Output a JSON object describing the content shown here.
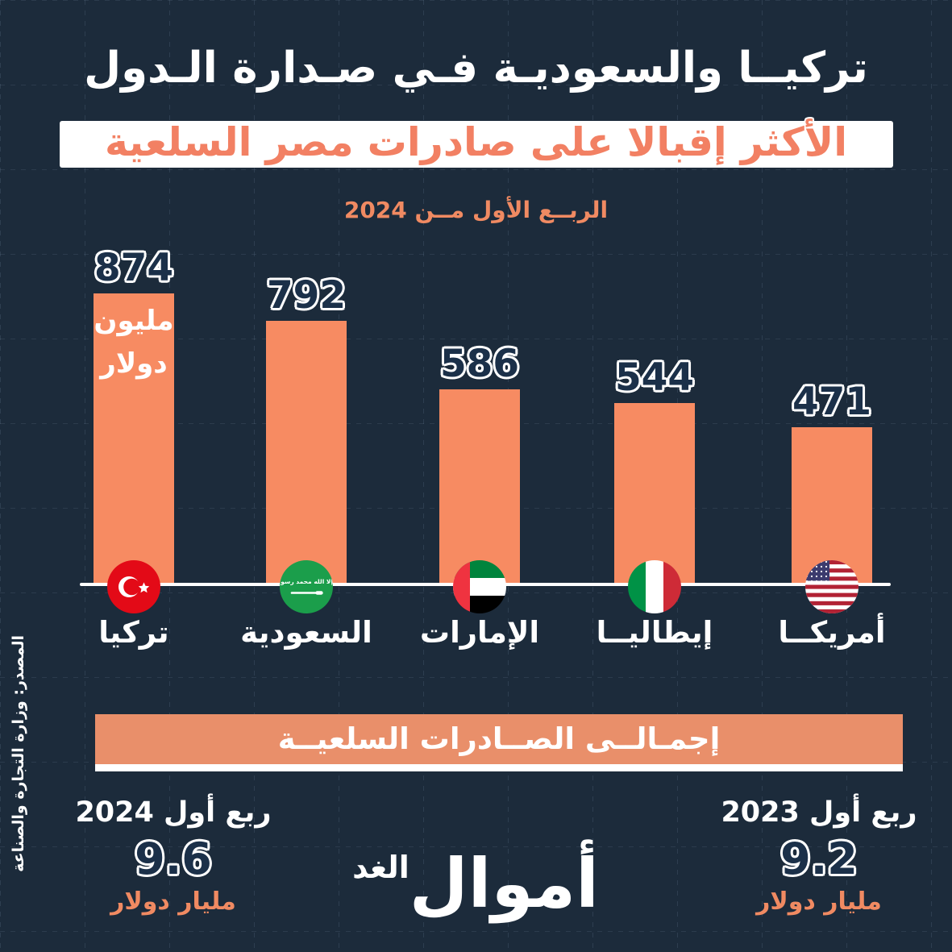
{
  "header": {
    "title_line1": "تركيــا والسعوديـة فـي صـدارة الـدول",
    "title_line2": "الأكثر إقبالا على صادرات مصر السلعية",
    "subtitle": "الربــع الأول مــن 2024"
  },
  "chart_data": {
    "type": "bar",
    "title": "تركيا والسعودية في صدارة الدول الأكثر إقبالا على صادرات مصر السلعية - الربع الأول من 2024",
    "unit": "مليون دولار",
    "categories": [
      "تركيا",
      "السعودية",
      "الإمارات",
      "إيطاليــا",
      "أمريكــا"
    ],
    "categories_en": [
      "Turkey",
      "Saudi Arabia",
      "UAE",
      "Italy",
      "USA"
    ],
    "values": [
      874,
      792,
      586,
      544,
      471
    ],
    "first_bar_unit_label": "مليون دولار",
    "ylim": [
      0,
      900
    ],
    "grid": false,
    "legend": false,
    "bar_color": "#F78B62",
    "value_label_color": "#1B3049"
  },
  "totals": {
    "banner_label": "إجمـالــى الصــادرات السلعيــة",
    "q1_2024": {
      "period": "ربع أول 2024",
      "value": "9.6",
      "unit": "مليار دولار"
    },
    "q1_2023": {
      "period": "ربع أول 2023",
      "value": "9.2",
      "unit": "مليار دولار"
    }
  },
  "source": "المصدر: وزارة التجارة والصناعة",
  "logo": {
    "main": "أموال",
    "sub": "الغد"
  },
  "colors": {
    "background": "#1C2B3B",
    "bar": "#F78B62",
    "banner": "#E98F6A",
    "accent_orange": "#F08A62",
    "navy_text": "#1B3049",
    "white": "#FFFFFF"
  }
}
